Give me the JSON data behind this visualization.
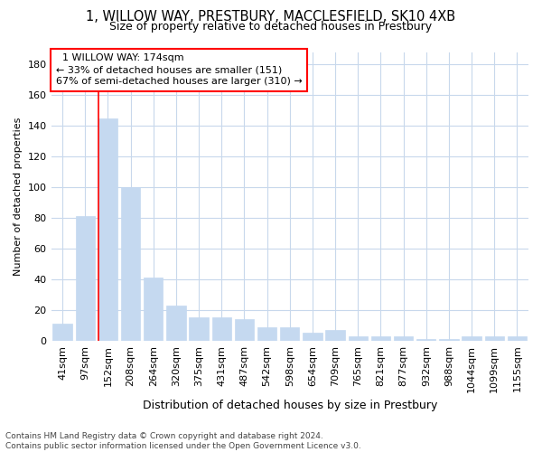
{
  "title1": "1, WILLOW WAY, PRESTBURY, MACCLESFIELD, SK10 4XB",
  "title2": "Size of property relative to detached houses in Prestbury",
  "xlabel": "Distribution of detached houses by size in Prestbury",
  "ylabel": "Number of detached properties",
  "categories": [
    "41sqm",
    "97sqm",
    "152sqm",
    "208sqm",
    "264sqm",
    "320sqm",
    "375sqm",
    "431sqm",
    "487sqm",
    "542sqm",
    "598sqm",
    "654sqm",
    "709sqm",
    "765sqm",
    "821sqm",
    "877sqm",
    "932sqm",
    "988sqm",
    "1044sqm",
    "1099sqm",
    "1155sqm"
  ],
  "values": [
    11,
    81,
    145,
    100,
    41,
    23,
    15,
    15,
    14,
    9,
    9,
    5,
    7,
    3,
    3,
    3,
    1,
    1,
    3,
    3,
    3
  ],
  "bar_color": "#c5d9f0",
  "bar_edgecolor": "#c5d9f0",
  "redline_index": 2,
  "annotation_title": "1 WILLOW WAY: 174sqm",
  "annotation_line1": "← 33% of detached houses are smaller (151)",
  "annotation_line2": "67% of semi-detached houses are larger (310) →",
  "ylim_max": 188,
  "yticks": [
    0,
    20,
    40,
    60,
    80,
    100,
    120,
    140,
    160,
    180
  ],
  "footer1": "Contains HM Land Registry data © Crown copyright and database right 2024.",
  "footer2": "Contains public sector information licensed under the Open Government Licence v3.0.",
  "bg_color": "#ffffff",
  "grid_color": "#c8d8ec"
}
